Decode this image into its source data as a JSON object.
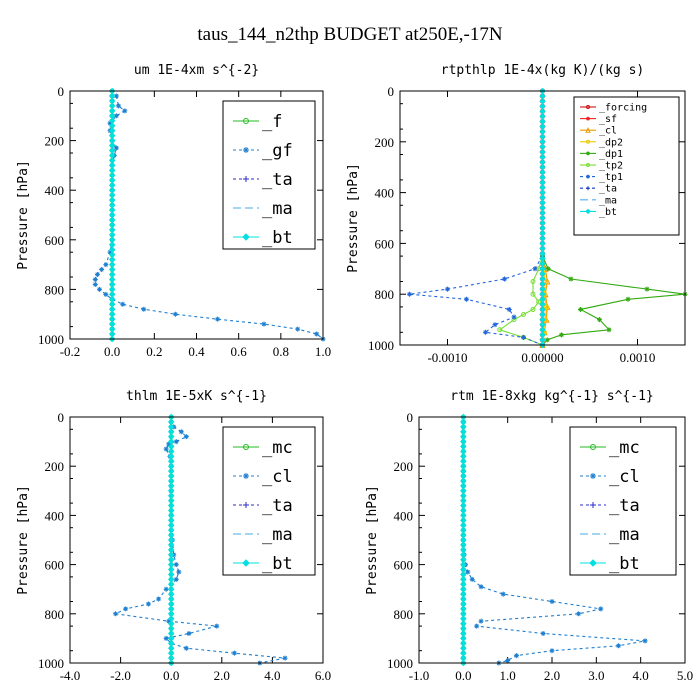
{
  "figure_title": "taus_144_n2thp  BUDGET at250E,-17N",
  "chart_data": [
    {
      "type": "line",
      "title": "um   1E-4xm s^{-2}",
      "xlabel": "",
      "ylabel": "Pressure [hPa]",
      "xlim": [
        -0.2,
        1.0
      ],
      "ylim": [
        1000,
        0
      ],
      "xticks": [
        "-0.2",
        "0.0",
        "0.2",
        "0.4",
        "0.6",
        "0.8",
        "1.0"
      ],
      "yticks": [
        "0",
        "200",
        "400",
        "600",
        "800",
        "1000"
      ],
      "legend_position": "top-right",
      "legend_large": true,
      "series": [
        {
          "name": "_f",
          "color": "#22bb22",
          "marker": "circle",
          "dash": "",
          "y": [
            0,
            1000
          ],
          "x": [
            0,
            0
          ]
        },
        {
          "name": "_gf",
          "color": "#1e7fd0",
          "marker": "star",
          "dash": "3,3",
          "y": [
            20,
            60,
            80,
            100,
            130,
            160,
            200,
            230,
            260,
            300,
            400,
            500,
            600,
            650,
            700,
            720,
            740,
            760,
            780,
            800,
            820,
            840,
            860,
            880,
            900,
            920,
            940,
            960,
            980,
            1000
          ],
          "x": [
            0.02,
            0.03,
            0.06,
            0.02,
            -0.01,
            -0.01,
            0.0,
            0.02,
            0.01,
            0.0,
            0.0,
            0.0,
            0.0,
            -0.01,
            -0.03,
            -0.05,
            -0.07,
            -0.08,
            -0.08,
            -0.06,
            -0.03,
            0.0,
            0.05,
            0.15,
            0.3,
            0.5,
            0.72,
            0.88,
            0.97,
            1.0
          ]
        },
        {
          "name": "_ta",
          "color": "#2a2ad0",
          "marker": "plus",
          "dash": "3,3",
          "y": [
            0,
            1000
          ],
          "x": [
            0,
            0
          ]
        },
        {
          "name": "_ma",
          "color": "#4aa8e8",
          "marker": "none",
          "dash": "8,4",
          "y": [
            0,
            1000
          ],
          "x": [
            0,
            0
          ]
        },
        {
          "name": "_bt",
          "color": "#00e0e0",
          "marker": "diamond",
          "dash": "",
          "y": [
            0,
            1000
          ],
          "x": [
            0,
            0
          ]
        }
      ]
    },
    {
      "type": "line",
      "title": "rtpthlp   1E-4x(kg K)/(kg s)",
      "xlabel": "",
      "ylabel": "Pressure [hPa]",
      "xlim": [
        -0.0015,
        0.0015
      ],
      "ylim": [
        1000,
        0
      ],
      "xticks": [
        "-0.0010",
        "0.00000",
        "0.0010"
      ],
      "yticks": [
        "0",
        "200",
        "400",
        "600",
        "800",
        "1000"
      ],
      "legend_position": "top-right",
      "legend_large": false,
      "series": [
        {
          "name": "_forcing",
          "color": "#cc1111",
          "marker": "circle",
          "dash": "",
          "y": [
            0,
            1000
          ],
          "x": [
            0,
            0
          ]
        },
        {
          "name": "_sf",
          "color": "#ee2222",
          "marker": "star",
          "dash": "",
          "y": [
            0,
            1000
          ],
          "x": [
            0,
            0
          ]
        },
        {
          "name": "_cl",
          "color": "#ee9900",
          "marker": "triangle",
          "dash": "",
          "y": [
            650,
            700,
            750,
            800,
            850,
            900,
            950,
            1000
          ],
          "x": [
            0,
            3e-05,
            5e-05,
            3e-05,
            5e-05,
            4e-05,
            2e-05,
            0
          ]
        },
        {
          "name": "_dp2",
          "color": "#eecc00",
          "marker": "circle",
          "dash": "",
          "y": [
            650,
            750,
            800,
            850,
            900,
            950,
            1000
          ],
          "x": [
            0,
            3e-05,
            2e-05,
            4e-05,
            3e-05,
            2e-05,
            0
          ]
        },
        {
          "name": "_dp1",
          "color": "#33aa11",
          "marker": "star",
          "dash": "",
          "y": [
            650,
            700,
            740,
            780,
            800,
            820,
            860,
            900,
            940,
            960,
            980,
            1000
          ],
          "x": [
            0,
            6e-05,
            0.0003,
            0.0011,
            0.0015,
            0.0009,
            0.0004,
            0.0006,
            0.0007,
            0.0002,
            5e-05,
            0
          ]
        },
        {
          "name": "_tp2",
          "color": "#77dd33",
          "marker": "circle",
          "dash": "",
          "y": [
            650,
            700,
            750,
            800,
            830,
            860,
            880,
            900,
            940,
            970,
            1000
          ],
          "x": [
            0,
            -4e-05,
            -0.0001,
            -0.0001,
            -4e-05,
            -0.0001,
            -0.0002,
            -0.0003,
            -0.00045,
            -0.0002,
            0
          ]
        },
        {
          "name": "_tp1",
          "color": "#2266dd",
          "marker": "star",
          "dash": "3,3",
          "y": [
            650,
            700,
            740,
            780,
            800,
            820,
            860,
            890,
            920,
            950,
            970,
            1000
          ],
          "x": [
            0,
            -8e-05,
            -0.0004,
            -0.001,
            -0.0014,
            -0.0008,
            -0.00035,
            -0.0003,
            -0.0005,
            -0.0006,
            -0.0002,
            0
          ]
        },
        {
          "name": "_ta",
          "color": "#1133cc",
          "marker": "plus",
          "dash": "3,3",
          "y": [
            0,
            1000
          ],
          "x": [
            0,
            0
          ]
        },
        {
          "name": "_ma",
          "color": "#55aaee",
          "marker": "none",
          "dash": "8,4",
          "y": [
            0,
            1000
          ],
          "x": [
            0,
            0
          ]
        },
        {
          "name": "_bt",
          "color": "#00e0e0",
          "marker": "diamond",
          "dash": "",
          "y": [
            0,
            1000
          ],
          "x": [
            0,
            0
          ]
        }
      ]
    },
    {
      "type": "line",
      "title": "thlm   1E-5xK s^{-1}",
      "xlabel": "",
      "ylabel": "Pressure [hPa]",
      "xlim": [
        -4.0,
        6.0
      ],
      "ylim": [
        1000,
        0
      ],
      "xticks": [
        "-4.0",
        "-2.0",
        "0.0",
        "2.0",
        "4.0",
        "6.0"
      ],
      "yticks": [
        "0",
        "200",
        "400",
        "600",
        "800",
        "1000"
      ],
      "legend_position": "top-right",
      "legend_large": true,
      "series": [
        {
          "name": "_mc",
          "color": "#22bb22",
          "marker": "circle",
          "dash": "",
          "y": [
            0,
            1000
          ],
          "x": [
            0,
            0
          ]
        },
        {
          "name": "_cl",
          "color": "#1e7fd0",
          "marker": "star",
          "dash": "3,3",
          "y": [
            40,
            60,
            80,
            100,
            110,
            130,
            160,
            200,
            300,
            400,
            500,
            560,
            600,
            630,
            660,
            700,
            740,
            760,
            780,
            800,
            830,
            850,
            880,
            900,
            920,
            940,
            960,
            980,
            1000
          ],
          "x": [
            0.1,
            0.4,
            0.6,
            0.2,
            -0.1,
            -0.2,
            -0.05,
            0.0,
            0.0,
            0.0,
            0.05,
            0.1,
            0.2,
            0.3,
            0.2,
            -0.2,
            -0.5,
            -0.9,
            -1.8,
            -2.2,
            -0.1,
            1.8,
            0.7,
            -0.2,
            0.0,
            0.6,
            2.5,
            4.5,
            3.5
          ]
        },
        {
          "name": "_ta",
          "color": "#2a2ad0",
          "marker": "plus",
          "dash": "3,3",
          "y": [
            0,
            1000
          ],
          "x": [
            0,
            0
          ]
        },
        {
          "name": "_ma",
          "color": "#4aa8e8",
          "marker": "none",
          "dash": "8,4",
          "y": [
            0,
            1000
          ],
          "x": [
            0,
            0
          ]
        },
        {
          "name": "_bt",
          "color": "#00e0e0",
          "marker": "diamond",
          "dash": "",
          "y": [
            0,
            1000
          ],
          "x": [
            0,
            0
          ]
        }
      ]
    },
    {
      "type": "line",
      "title": "rtm   1E-8xkg kg^{-1} s^{-1}",
      "xlabel": "",
      "ylabel": "Pressure [hPa]",
      "xlim": [
        -1.0,
        5.0
      ],
      "ylim": [
        1000,
        0
      ],
      "xticks": [
        "-1.0",
        "0.0",
        "1.0",
        "2.0",
        "3.0",
        "4.0",
        "5.0"
      ],
      "yticks": [
        "0",
        "200",
        "400",
        "600",
        "800",
        "1000"
      ],
      "legend_position": "top-right",
      "legend_large": true,
      "series": [
        {
          "name": "_mc",
          "color": "#22bb22",
          "marker": "circle",
          "dash": "",
          "y": [
            0,
            1000
          ],
          "x": [
            0,
            0
          ]
        },
        {
          "name": "_cl",
          "color": "#1e7fd0",
          "marker": "star",
          "dash": "3,3",
          "y": [
            500,
            560,
            600,
            630,
            660,
            690,
            720,
            750,
            780,
            800,
            830,
            850,
            880,
            910,
            930,
            950,
            970,
            990,
            1000
          ],
          "x": [
            0.0,
            0.02,
            0.05,
            0.1,
            0.2,
            0.4,
            0.9,
            2.0,
            3.1,
            2.6,
            0.4,
            0.3,
            1.8,
            4.1,
            3.5,
            2.0,
            1.2,
            1.0,
            0.8
          ]
        },
        {
          "name": "_ta",
          "color": "#2a2ad0",
          "marker": "plus",
          "dash": "3,3",
          "y": [
            0,
            1000
          ],
          "x": [
            0,
            0
          ]
        },
        {
          "name": "_ma",
          "color": "#4aa8e8",
          "marker": "none",
          "dash": "8,4",
          "y": [
            0,
            1000
          ],
          "x": [
            0,
            0
          ]
        },
        {
          "name": "_bt",
          "color": "#00e0e0",
          "marker": "diamond",
          "dash": "",
          "y": [
            0,
            1000
          ],
          "x": [
            0,
            0
          ]
        }
      ]
    }
  ]
}
